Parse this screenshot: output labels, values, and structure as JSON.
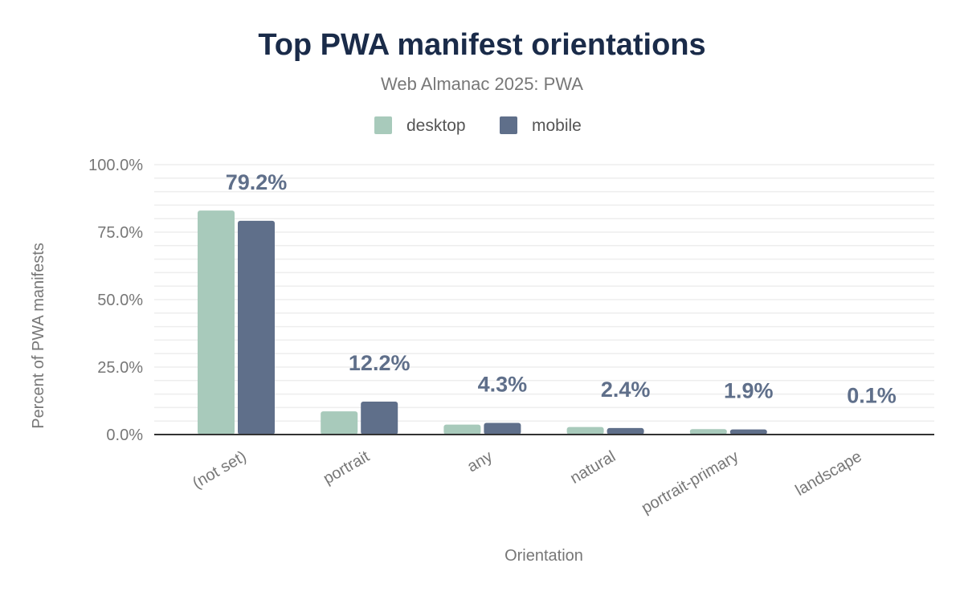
{
  "chart_data": {
    "type": "bar",
    "title": "Top PWA manifest orientations",
    "subtitle": "Web Almanac 2025: PWA",
    "xlabel": "Orientation",
    "ylabel": "Percent of PWA manifests",
    "ylim": [
      0,
      100
    ],
    "yticks": [
      "0.0%",
      "25.0%",
      "50.0%",
      "75.0%",
      "100.0%"
    ],
    "ytick_values": [
      0,
      25,
      50,
      75,
      100
    ],
    "grid": true,
    "legend_position": "top",
    "categories": [
      "(not set)",
      "portrait",
      "any",
      "natural",
      "portrait-primary",
      "landscape"
    ],
    "series": [
      {
        "name": "desktop",
        "color": "#a8cabb",
        "values": [
          83.0,
          8.6,
          3.7,
          2.8,
          2.0,
          0.1
        ]
      },
      {
        "name": "mobile",
        "color": "#5f6f8a",
        "values": [
          79.2,
          12.2,
          4.3,
          2.4,
          1.9,
          0.1
        ]
      }
    ],
    "data_labels": [
      "79.2%",
      "12.2%",
      "4.3%",
      "2.4%",
      "1.9%",
      "0.1%"
    ],
    "data_label_series": "mobile"
  }
}
